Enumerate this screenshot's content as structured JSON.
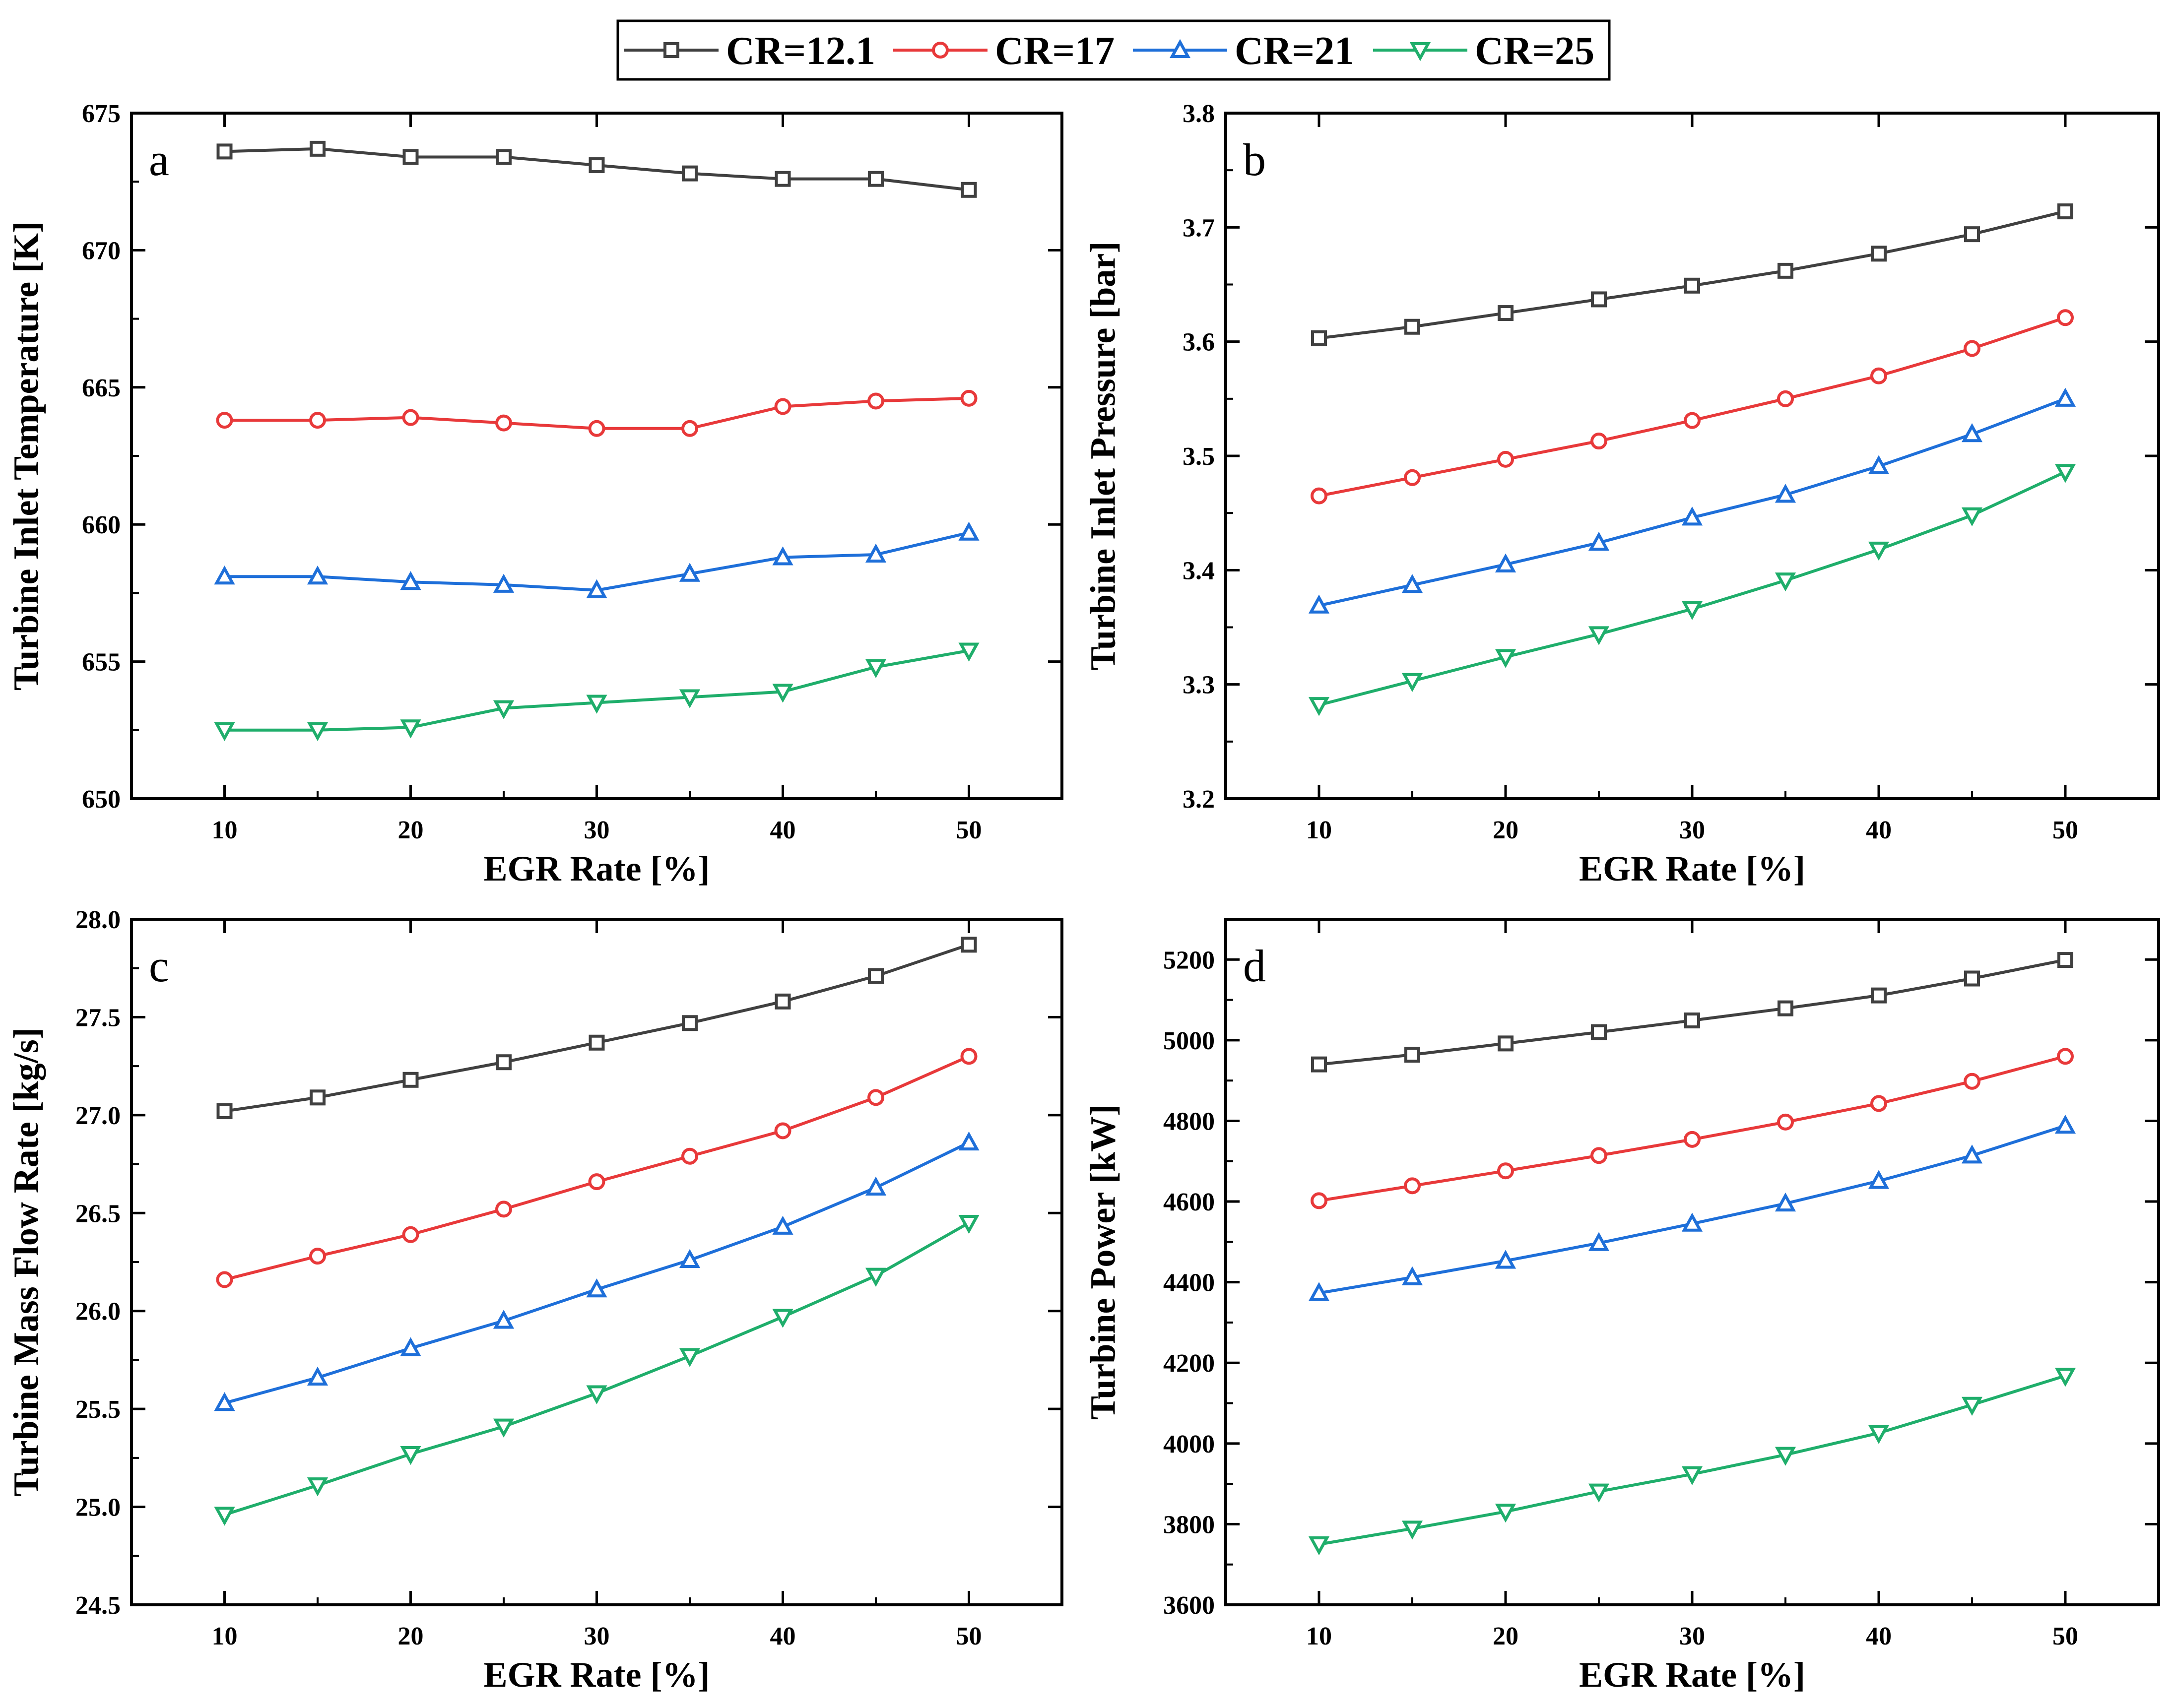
{
  "legend": {
    "position": "top-center",
    "items": [
      {
        "label": "CR=12.1",
        "color": "#404040",
        "marker": "square"
      },
      {
        "label": "CR=17",
        "color": "#e8393a",
        "marker": "circle"
      },
      {
        "label": "CR=21",
        "color": "#1e6fd9",
        "marker": "triangle-up"
      },
      {
        "label": "CR=25",
        "color": "#1fae6b",
        "marker": "triangle-down"
      }
    ]
  },
  "chart_data": [
    {
      "type": "line",
      "panel": "a",
      "xlabel": "EGR Rate [%]",
      "ylabel": "Turbine Inlet Temperature [K]",
      "x": [
        10,
        15,
        20,
        25,
        30,
        35,
        40,
        45,
        50
      ],
      "xlim": [
        5,
        55
      ],
      "xticks": [
        "10",
        "20",
        "30",
        "40",
        "50"
      ],
      "ylim": [
        650,
        675
      ],
      "yticks": [
        "650",
        "655",
        "660",
        "665",
        "670",
        "675"
      ],
      "grid": false,
      "series": [
        {
          "name": "CR=12.1",
          "values": [
            673.6,
            673.7,
            673.4,
            673.4,
            673.1,
            672.8,
            672.6,
            672.6,
            672.2
          ]
        },
        {
          "name": "CR=17",
          "values": [
            663.8,
            663.8,
            663.9,
            663.7,
            663.5,
            663.5,
            664.3,
            664.5,
            664.6
          ]
        },
        {
          "name": "CR=21",
          "values": [
            658.1,
            658.1,
            657.9,
            657.8,
            657.6,
            658.2,
            658.8,
            658.9,
            659.7
          ]
        },
        {
          "name": "CR=25",
          "values": [
            652.5,
            652.5,
            652.6,
            653.3,
            653.5,
            653.7,
            653.9,
            654.8,
            655.4
          ]
        }
      ]
    },
    {
      "type": "line",
      "panel": "b",
      "xlabel": "EGR Rate [%]",
      "ylabel": "Turbine Inlet Pressure [bar]",
      "x": [
        10,
        15,
        20,
        25,
        30,
        35,
        40,
        45,
        50
      ],
      "xlim": [
        5,
        55
      ],
      "xticks": [
        "10",
        "20",
        "30",
        "40",
        "50"
      ],
      "ylim": [
        3.2,
        3.8
      ],
      "yticks": [
        "3.2",
        "3.3",
        "3.4",
        "3.5",
        "3.6",
        "3.7",
        "3.8"
      ],
      "grid": false,
      "series": [
        {
          "name": "CR=12.1",
          "values": [
            3.603,
            3.613,
            3.625,
            3.637,
            3.649,
            3.662,
            3.677,
            3.694,
            3.714
          ]
        },
        {
          "name": "CR=17",
          "values": [
            3.465,
            3.481,
            3.497,
            3.513,
            3.531,
            3.55,
            3.57,
            3.594,
            3.621
          ]
        },
        {
          "name": "CR=21",
          "values": [
            3.369,
            3.387,
            3.405,
            3.424,
            3.446,
            3.466,
            3.491,
            3.519,
            3.55
          ]
        },
        {
          "name": "CR=25",
          "values": [
            3.282,
            3.303,
            3.324,
            3.344,
            3.366,
            3.391,
            3.418,
            3.448,
            3.486
          ]
        }
      ]
    },
    {
      "type": "line",
      "panel": "c",
      "xlabel": "EGR Rate [%]",
      "ylabel": "Turbine Mass Flow Rate [kg/s]",
      "x": [
        10,
        15,
        20,
        25,
        30,
        35,
        40,
        45,
        50
      ],
      "xlim": [
        5,
        55
      ],
      "xticks": [
        "10",
        "20",
        "30",
        "40",
        "50"
      ],
      "ylim": [
        24.5,
        28.0
      ],
      "yticks": [
        "24.5",
        "25.0",
        "25.5",
        "26.0",
        "26.5",
        "27.0",
        "27.5",
        "28.0"
      ],
      "grid": false,
      "series": [
        {
          "name": "CR=12.1",
          "values": [
            27.02,
            27.09,
            27.18,
            27.27,
            27.37,
            27.47,
            27.58,
            27.71,
            27.87
          ]
        },
        {
          "name": "CR=17",
          "values": [
            26.16,
            26.28,
            26.39,
            26.52,
            26.66,
            26.79,
            26.92,
            27.09,
            27.3
          ]
        },
        {
          "name": "CR=21",
          "values": [
            25.53,
            25.66,
            25.81,
            25.95,
            26.11,
            26.26,
            26.43,
            26.63,
            26.86
          ]
        },
        {
          "name": "CR=25",
          "values": [
            24.96,
            25.11,
            25.27,
            25.41,
            25.58,
            25.77,
            25.97,
            26.18,
            26.45
          ]
        }
      ]
    },
    {
      "type": "line",
      "panel": "d",
      "xlabel": "EGR Rate [%]",
      "ylabel": "Turbine Power [kW]",
      "x": [
        10,
        15,
        20,
        25,
        30,
        35,
        40,
        45,
        50
      ],
      "xlim": [
        5,
        55
      ],
      "xticks": [
        "10",
        "20",
        "30",
        "40",
        "50"
      ],
      "ylim": [
        3600,
        5300
      ],
      "yticks": [
        "3600",
        "3800",
        "4000",
        "4200",
        "4400",
        "4600",
        "4800",
        "5000",
        "5200"
      ],
      "grid": false,
      "series": [
        {
          "name": "CR=12.1",
          "values": [
            4940,
            4964,
            4992,
            5020,
            5049,
            5079,
            5111,
            5153,
            5199
          ]
        },
        {
          "name": "CR=17",
          "values": [
            4602,
            4639,
            4676,
            4714,
            4754,
            4797,
            4843,
            4898,
            4960
          ]
        },
        {
          "name": "CR=21",
          "values": [
            4373,
            4412,
            4453,
            4497,
            4545,
            4595,
            4651,
            4714,
            4788
          ]
        },
        {
          "name": "CR=25",
          "values": [
            3750,
            3789,
            3831,
            3881,
            3924,
            3972,
            4026,
            4096,
            4168
          ]
        }
      ]
    }
  ]
}
